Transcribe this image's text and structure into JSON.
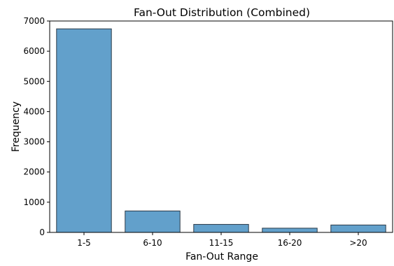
{
  "chart_data": {
    "type": "bar",
    "title": "Fan-Out Distribution (Combined)",
    "xlabel": "Fan-Out Range",
    "ylabel": "Frequency",
    "categories": [
      "1-5",
      "6-10",
      "11-15",
      "16-20",
      ">20"
    ],
    "values": [
      6740,
      710,
      265,
      140,
      245
    ],
    "ylim": [
      0,
      7000
    ],
    "yticks": [
      "0",
      "1000",
      "2000",
      "3000",
      "4000",
      "5000",
      "6000",
      "7000"
    ],
    "grid": false,
    "colors": {
      "bar_fill": "#62a0cb",
      "bar_edge": "#2b3a47",
      "axis": "#000000"
    }
  }
}
